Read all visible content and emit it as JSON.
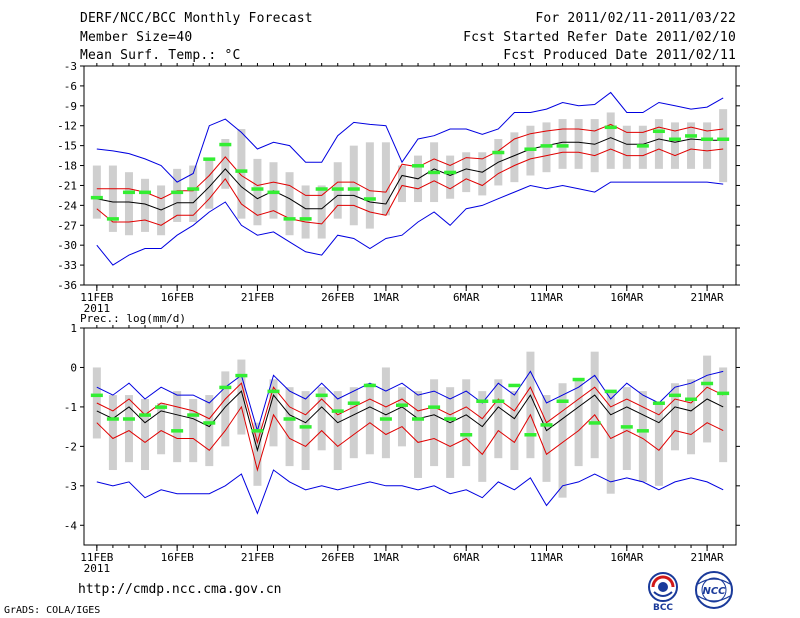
{
  "header": {
    "title": "DERF/NCC/BCC Monthly Forecast",
    "member_size": "Member Size=40",
    "variable": "Mean Surf. Temp.: °C",
    "period": "For 2011/02/11-2011/03/22",
    "started": "Fcst Started Refer Date 2011/02/10",
    "produced": "Fcst Produced Date 2011/02/11"
  },
  "footer": {
    "url": "http://cmdp.ncc.cma.gov.cn",
    "grads": "GrADS: COLA/IGES",
    "logo_left_text": "BCC",
    "logo_right_text": "NCC"
  },
  "colors": {
    "mean": "#000000",
    "spread": "#e00000",
    "extreme": "#0000e0",
    "box": "#cfcfcf",
    "obs": "#33ee33"
  },
  "chart_data": [
    {
      "type": "line",
      "title": "Mean Surf. Temp.: °C",
      "x_tick_labels": [
        "11FEB",
        "16FEB",
        "21FEB",
        "26FEB",
        "1MAR",
        "6MAR",
        "11MAR",
        "16MAR",
        "21MAR"
      ],
      "x_tick_days": [
        0,
        5,
        10,
        15,
        18,
        23,
        28,
        33,
        38
      ],
      "x_sublabel": "2011",
      "y_ticks": [
        -3,
        -6,
        -9,
        -12,
        -15,
        -18,
        -21,
        -24,
        -27,
        -30,
        -33,
        -36
      ],
      "ylim": [
        -36,
        -3
      ],
      "xlim_days": [
        -0.8,
        39.8
      ],
      "series": [
        {
          "name": "mean",
          "values": [
            -23.0,
            -23.5,
            -23.5,
            -23.8,
            -24.7,
            -23.6,
            -23.6,
            -21.2,
            -18.5,
            -21.2,
            -23.0,
            -21.8,
            -23.0,
            -24.5,
            -24.5,
            -22.5,
            -22.5,
            -23.5,
            -23.8,
            -19.5,
            -20.0,
            -18.5,
            -19.5,
            -18.5,
            -19.0,
            -17.5,
            -16.5,
            -15.5,
            -15.0,
            -14.5,
            -14.5,
            -14.8,
            -13.8,
            -14.8,
            -14.8,
            -14.0,
            -14.5,
            -14.0,
            -14.2,
            -14.2
          ]
        },
        {
          "name": "upper spread",
          "values": [
            -21.5,
            -21.5,
            -21.5,
            -22.0,
            -23.0,
            -21.8,
            -21.8,
            -19.5,
            -16.7,
            -19.5,
            -21.0,
            -20.5,
            -21.0,
            -22.5,
            -22.5,
            -20.5,
            -20.5,
            -21.8,
            -22.0,
            -17.8,
            -18.2,
            -17.0,
            -18.0,
            -16.8,
            -17.0,
            -15.8,
            -14.0,
            -13.2,
            -12.8,
            -12.5,
            -12.5,
            -12.8,
            -11.8,
            -13.0,
            -13.0,
            -12.2,
            -12.8,
            -12.2,
            -12.8,
            -12.5
          ]
        },
        {
          "name": "lower spread",
          "values": [
            -24.5,
            -26.5,
            -26.5,
            -26.2,
            -27.0,
            -25.5,
            -25.5,
            -23.0,
            -20.0,
            -23.8,
            -25.5,
            -24.8,
            -26.0,
            -26.5,
            -26.8,
            -24.0,
            -24.0,
            -25.0,
            -25.5,
            -21.0,
            -21.5,
            -20.3,
            -21.5,
            -20.0,
            -21.0,
            -19.2,
            -18.0,
            -17.0,
            -16.5,
            -16.0,
            -16.0,
            -16.5,
            -15.5,
            -16.5,
            -16.5,
            -15.5,
            -16.5,
            -15.5,
            -15.8,
            -15.5
          ]
        },
        {
          "name": "max member",
          "values": [
            -15.5,
            -15.8,
            -16.2,
            -17.0,
            -18.0,
            -20.5,
            -19.2,
            -12.0,
            -11.0,
            -13.0,
            -15.5,
            -14.5,
            -15.0,
            -17.5,
            -17.5,
            -13.5,
            -11.5,
            -11.8,
            -12.0,
            -17.5,
            -14.0,
            -13.5,
            -12.5,
            -12.5,
            -13.3,
            -12.5,
            -10.0,
            -10.0,
            -9.5,
            -8.5,
            -9.0,
            -8.8,
            -7.0,
            -10.0,
            -10.0,
            -8.5,
            -9.0,
            -9.5,
            -9.2,
            -7.8
          ]
        },
        {
          "name": "min member",
          "values": [
            -30.0,
            -33.0,
            -31.5,
            -30.5,
            -30.5,
            -28.5,
            -27.0,
            -25.0,
            -23.5,
            -27.0,
            -28.5,
            -28.0,
            -29.5,
            -31.0,
            -31.5,
            -28.5,
            -29.0,
            -30.5,
            -29.0,
            -28.5,
            -26.5,
            -25.0,
            -27.0,
            -24.5,
            -24.0,
            -23.0,
            -22.0,
            -21.0,
            -21.5,
            -21.0,
            -21.5,
            -22.0,
            -20.5,
            -20.5,
            -20.5,
            -20.5,
            -20.5,
            -20.5,
            -20.5,
            -20.8
          ]
        },
        {
          "name": "box top",
          "values": [
            -18.0,
            -18.0,
            -19.0,
            -20.0,
            -21.0,
            -18.5,
            -18.0,
            -17.0,
            -14.0,
            -12.5,
            -17.0,
            -17.5,
            -19.0,
            -21.0,
            -21.0,
            -17.5,
            -15.0,
            -14.5,
            -14.5,
            -18.0,
            -16.5,
            -14.5,
            -16.5,
            -16.0,
            -16.0,
            -14.0,
            -13.0,
            -12.0,
            -11.5,
            -11.0,
            -11.0,
            -11.0,
            -10.0,
            -12.0,
            -12.0,
            -11.0,
            -11.5,
            -11.5,
            -11.5,
            -9.5
          ]
        },
        {
          "name": "box bottom",
          "values": [
            -26.0,
            -28.0,
            -28.5,
            -28.0,
            -28.5,
            -26.5,
            -26.5,
            -24.5,
            -21.5,
            -26.0,
            -27.0,
            -26.0,
            -28.5,
            -29.0,
            -29.0,
            -26.0,
            -27.0,
            -27.5,
            -25.5,
            -23.5,
            -23.5,
            -23.5,
            -23.0,
            -22.0,
            -22.5,
            -21.0,
            -20.5,
            -19.5,
            -19.0,
            -18.5,
            -18.5,
            -19.0,
            -18.5,
            -18.5,
            -18.5,
            -18.5,
            -18.5,
            -18.5,
            -18.5,
            -20.5
          ]
        },
        {
          "name": "observed",
          "values": [
            -22.8,
            -26.0,
            -22.0,
            -22.0,
            null,
            -22.0,
            -21.5,
            -17.0,
            -14.8,
            -18.8,
            -21.5,
            -22.0,
            -26.0,
            -26.0,
            -21.5,
            -21.5,
            -21.5,
            -23.0,
            null,
            null,
            -18.0,
            -19.0,
            -19.0,
            null,
            null,
            -16.0,
            null,
            -15.5,
            -15.0,
            -15.0,
            null,
            null,
            -12.2,
            null,
            -15.0,
            -12.8,
            -14.0,
            -13.5,
            -14.0,
            -14.0
          ]
        }
      ]
    },
    {
      "type": "line",
      "title": "Prec.: log(mm/d)",
      "x_tick_labels": [
        "11FEB",
        "16FEB",
        "21FEB",
        "26FEB",
        "1MAR",
        "6MAR",
        "11MAR",
        "16MAR",
        "21MAR"
      ],
      "x_tick_days": [
        0,
        5,
        10,
        15,
        18,
        23,
        28,
        33,
        38
      ],
      "x_sublabel": "2011",
      "y_ticks": [
        1,
        0,
        -1,
        -2,
        -3,
        -4
      ],
      "ylim": [
        -4.5,
        1
      ],
      "xlim_days": [
        -0.8,
        39.8
      ],
      "series": [
        {
          "name": "mean",
          "values": [
            -1.1,
            -1.3,
            -1.0,
            -1.4,
            -1.1,
            -1.2,
            -1.3,
            -1.5,
            -1.0,
            -0.6,
            -2.1,
            -0.7,
            -1.2,
            -1.4,
            -1.0,
            -1.4,
            -1.2,
            -1.0,
            -1.2,
            -1.0,
            -1.3,
            -1.2,
            -1.4,
            -1.2,
            -1.5,
            -1.0,
            -1.3,
            -0.7,
            -1.6,
            -1.3,
            -1.0,
            -0.7,
            -1.2,
            -1.0,
            -1.2,
            -1.4,
            -1.0,
            -1.1,
            -0.8,
            -1.0
          ]
        },
        {
          "name": "upper spread",
          "values": [
            -0.9,
            -1.1,
            -0.8,
            -1.2,
            -0.9,
            -1.0,
            -1.1,
            -1.3,
            -0.8,
            -0.4,
            -1.9,
            -0.5,
            -1.0,
            -1.2,
            -0.8,
            -1.2,
            -1.0,
            -0.8,
            -1.0,
            -0.8,
            -1.1,
            -1.0,
            -1.2,
            -1.0,
            -1.3,
            -0.8,
            -1.1,
            -0.5,
            -1.4,
            -1.1,
            -0.8,
            -0.5,
            -1.0,
            -0.8,
            -1.0,
            -1.2,
            -0.8,
            -0.9,
            -0.5,
            -0.7
          ]
        },
        {
          "name": "lower spread",
          "values": [
            -1.4,
            -1.8,
            -1.6,
            -1.9,
            -1.6,
            -1.8,
            -1.8,
            -2.1,
            -1.6,
            -1.0,
            -2.6,
            -1.2,
            -1.8,
            -2.0,
            -1.6,
            -2.0,
            -1.7,
            -1.4,
            -1.7,
            -1.5,
            -1.9,
            -1.8,
            -2.0,
            -1.8,
            -2.2,
            -1.6,
            -1.9,
            -1.2,
            -2.2,
            -1.9,
            -1.6,
            -1.2,
            -1.8,
            -1.6,
            -1.8,
            -2.1,
            -1.6,
            -1.7,
            -1.4,
            -1.6
          ]
        },
        {
          "name": "max member",
          "values": [
            -0.5,
            -0.7,
            -0.4,
            -0.8,
            -0.5,
            -0.7,
            -0.7,
            -0.9,
            -0.5,
            -0.2,
            -1.6,
            -0.2,
            -0.6,
            -0.8,
            -0.4,
            -0.8,
            -0.6,
            -0.4,
            -0.6,
            -0.4,
            -0.7,
            -0.6,
            -0.8,
            -0.6,
            -0.9,
            -0.4,
            -0.7,
            -0.1,
            -0.9,
            -0.7,
            -0.5,
            -0.2,
            -0.8,
            -0.4,
            -0.7,
            -0.9,
            -0.5,
            -0.4,
            -0.2,
            -0.1
          ]
        },
        {
          "name": "min member",
          "values": [
            -2.9,
            -3.0,
            -2.9,
            -3.3,
            -3.1,
            -3.2,
            -3.2,
            -3.2,
            -3.0,
            -2.7,
            -3.7,
            -2.6,
            -2.9,
            -3.1,
            -3.0,
            -3.1,
            -3.0,
            -2.9,
            -3.0,
            -3.0,
            -3.1,
            -3.0,
            -3.2,
            -3.1,
            -3.3,
            -2.9,
            -3.1,
            -2.8,
            -3.5,
            -3.0,
            -2.9,
            -2.7,
            -2.9,
            -2.8,
            -2.9,
            -3.1,
            -2.9,
            -2.8,
            -2.9,
            -3.1
          ]
        },
        {
          "name": "box top",
          "values": [
            0.0,
            -0.7,
            -0.7,
            -0.8,
            -0.9,
            -0.6,
            -0.8,
            -0.7,
            -0.1,
            0.2,
            -1.4,
            -0.3,
            -0.5,
            -0.6,
            -0.5,
            -0.6,
            -0.5,
            -0.4,
            0.0,
            -0.5,
            -0.6,
            -0.3,
            -0.5,
            -0.3,
            -0.6,
            -0.3,
            -0.6,
            0.4,
            -0.7,
            -0.4,
            -0.3,
            0.4,
            -0.6,
            -0.5,
            -0.6,
            -0.9,
            -0.4,
            -0.3,
            0.3,
            0.0
          ]
        },
        {
          "name": "box bottom",
          "values": [
            -1.8,
            -2.6,
            -2.4,
            -2.6,
            -2.2,
            -2.4,
            -2.4,
            -2.5,
            -2.0,
            -1.7,
            -3.0,
            -2.0,
            -2.5,
            -2.6,
            -2.1,
            -2.6,
            -2.3,
            -2.2,
            -2.3,
            -2.0,
            -2.8,
            -2.5,
            -2.8,
            -2.5,
            -2.9,
            -2.3,
            -2.6,
            -2.3,
            -2.9,
            -3.3,
            -2.5,
            -2.3,
            -3.2,
            -2.6,
            -2.9,
            -3.0,
            -2.1,
            -2.2,
            -1.9,
            -2.4
          ]
        },
        {
          "name": "observed",
          "values": [
            -0.7,
            -1.3,
            -1.3,
            -1.2,
            -1.0,
            -1.6,
            -1.2,
            -1.4,
            -0.5,
            -0.2,
            -1.6,
            -0.6,
            -1.3,
            -1.5,
            -0.7,
            -1.1,
            -0.9,
            -0.45,
            -1.3,
            -0.95,
            -1.3,
            -1.0,
            -1.3,
            -1.7,
            -0.85,
            -0.85,
            -0.45,
            -1.7,
            -1.45,
            -0.85,
            -0.3,
            -1.4,
            -0.6,
            -1.5,
            -1.6,
            -0.9,
            -0.7,
            -0.8,
            -0.4,
            -0.65
          ]
        }
      ]
    }
  ]
}
